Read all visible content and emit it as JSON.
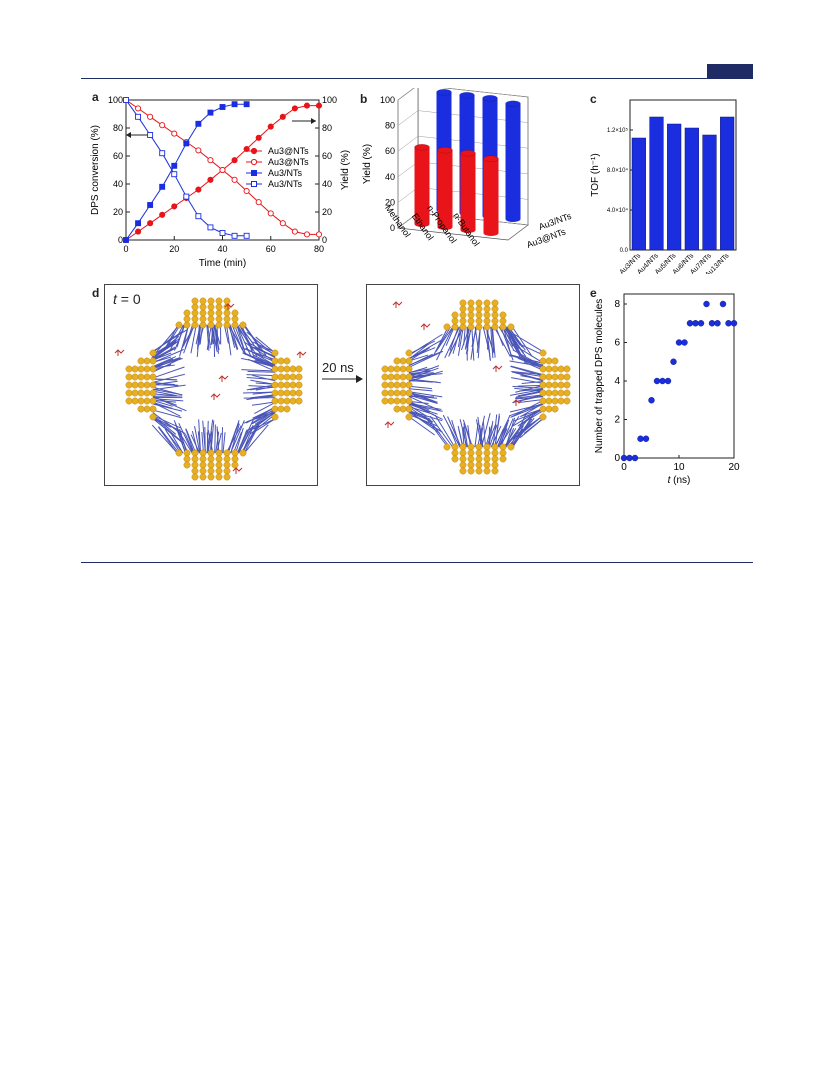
{
  "colors": {
    "rule": "#1e2b64",
    "red": "#e8141a",
    "blue": "#1a2ee0",
    "gold": "#e8b020",
    "ligand": "#4a55b8",
    "dps": "#c0302a"
  },
  "panel_a": {
    "label": "a",
    "chart_data": {
      "type": "line",
      "xlabel": "Time (min)",
      "ylabel_left": "DPS conversion (%)",
      "ylabel_right": "Yield (%)",
      "xlim": [
        0,
        80
      ],
      "ylim": [
        0,
        100
      ],
      "x_ticks": [
        "0",
        "20",
        "40",
        "60",
        "80"
      ],
      "y_ticks": [
        "0",
        "20",
        "40",
        "60",
        "80",
        "100"
      ],
      "legend_position": "right",
      "series": [
        {
          "name": "Au3@NTs",
          "marker": "filled-circle",
          "color": "#e8141a",
          "x": [
            0,
            5,
            10,
            15,
            20,
            25,
            30,
            35,
            40,
            45,
            50,
            55,
            60,
            65,
            70,
            75,
            80
          ],
          "y": [
            0,
            6,
            12,
            18,
            24,
            30,
            36,
            43,
            50,
            57,
            65,
            73,
            81,
            88,
            94,
            96,
            96
          ]
        },
        {
          "name": "Au3@NTs",
          "marker": "open-circle",
          "color": "#e8141a",
          "x": [
            0,
            5,
            10,
            15,
            20,
            25,
            30,
            35,
            40,
            45,
            50,
            55,
            60,
            65,
            70,
            75,
            80
          ],
          "y": [
            100,
            94,
            88,
            82,
            76,
            70,
            64,
            57,
            50,
            43,
            35,
            27,
            19,
            12,
            6,
            4,
            4
          ]
        },
        {
          "name": "Au3/NTs",
          "marker": "filled-square",
          "color": "#1a2ee0",
          "x": [
            0,
            5,
            10,
            15,
            20,
            25,
            30,
            35,
            40,
            45,
            50
          ],
          "y": [
            0,
            12,
            25,
            38,
            53,
            69,
            83,
            91,
            95,
            97,
            97
          ]
        },
        {
          "name": "Au3/NTs",
          "marker": "open-square",
          "color": "#1a2ee0",
          "x": [
            0,
            5,
            10,
            15,
            20,
            25,
            30,
            35,
            40,
            45,
            50
          ],
          "y": [
            100,
            88,
            75,
            62,
            47,
            31,
            17,
            9,
            5,
            3,
            3
          ]
        }
      ]
    }
  },
  "panel_b": {
    "label": "b",
    "chart_data": {
      "type": "bar",
      "categories": [
        "Methanol",
        "Ethanol",
        "n-Propanol",
        "n-Butanol"
      ],
      "series": [
        {
          "name": "Au3@NTs",
          "color": "#e8141a",
          "values": [
            60,
            60,
            60,
            58
          ]
        },
        {
          "name": "Au3/NTs",
          "color": "#1a2ee0",
          "values": [
            92,
            92,
            92,
            90
          ]
        }
      ],
      "ylabel": "Yield (%)",
      "ylim": [
        0,
        100
      ],
      "y_ticks": [
        "0",
        "20",
        "40",
        "60",
        "80",
        "100"
      ]
    }
  },
  "panel_c": {
    "label": "c",
    "chart_data": {
      "type": "bar",
      "categories": [
        "Au3/NTs",
        "Au4/NTs",
        "Au5/NTs",
        "Au6/NTs",
        "Au7/NTs",
        "Au13/NTs"
      ],
      "values": [
        112000,
        133000,
        126000,
        122000,
        115000,
        133000
      ],
      "ylabel": "TOF (h⁻¹)",
      "ylim": [
        0,
        150000
      ],
      "y_ticks": [
        "0.0",
        "4.0×10⁴",
        "8.0×10⁴",
        "1.2×10⁵"
      ],
      "bar_color": "#1a2ee0"
    }
  },
  "panel_d": {
    "label": "d",
    "left_title_italic": "t",
    "left_title_rest": " = 0",
    "arrow_label": "20 ns"
  },
  "panel_e": {
    "label": "e",
    "chart_data": {
      "type": "scatter",
      "xlabel_italic": "t",
      "xlabel_rest": " (ns)",
      "ylabel": "Number of trapped DPS molecules",
      "xlim": [
        0,
        20
      ],
      "ylim": [
        0,
        8
      ],
      "x_ticks": [
        "0",
        "10",
        "20"
      ],
      "y_ticks": [
        "0",
        "2",
        "4",
        "6",
        "8"
      ],
      "x": [
        0,
        1,
        2,
        3,
        4,
        5,
        6,
        7,
        8,
        9,
        10,
        11,
        12,
        13,
        14,
        15,
        16,
        17,
        18,
        19,
        20
      ],
      "y": [
        0,
        0,
        0,
        1,
        1,
        3,
        4,
        4,
        4,
        5,
        6,
        6,
        7,
        7,
        7,
        8,
        7,
        7,
        8,
        7,
        7
      ],
      "color": "#1a2ee0"
    }
  }
}
